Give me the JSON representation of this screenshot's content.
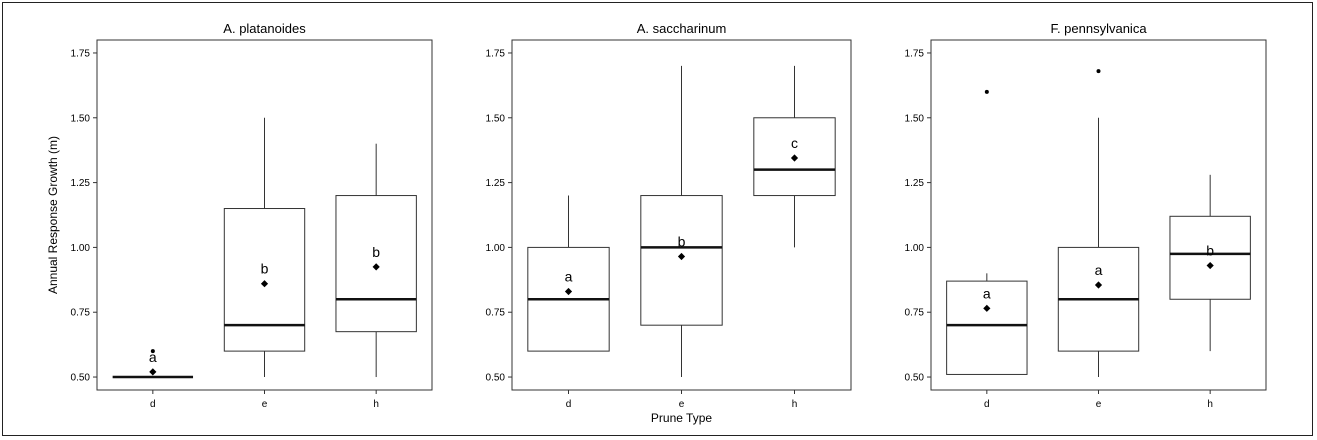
{
  "chart_data": [
    {
      "type": "boxplot",
      "title": "A. platanoides",
      "categories": [
        "d",
        "e",
        "h"
      ],
      "ylim": [
        0.45,
        1.8
      ],
      "yticks": [
        "0.50",
        "0.75",
        "1.00",
        "1.25",
        "1.50",
        "1.75"
      ],
      "ylabel": "Annual Response Growth (m)",
      "boxes": [
        {
          "category": "d",
          "q1": 0.5,
          "median": 0.5,
          "q3": 0.5,
          "whisker_low": 0.5,
          "whisker_high": 0.5,
          "mean": 0.52,
          "outliers": [
            0.6
          ],
          "letter": "a"
        },
        {
          "category": "e",
          "q1": 0.6,
          "median": 0.7,
          "q3": 1.15,
          "whisker_low": 0.5,
          "whisker_high": 1.5,
          "mean": 0.86,
          "outliers": [],
          "letter": "b"
        },
        {
          "category": "h",
          "q1": 0.675,
          "median": 0.8,
          "q3": 1.2,
          "whisker_low": 0.5,
          "whisker_high": 1.4,
          "mean": 0.925,
          "outliers": [],
          "letter": "b"
        }
      ]
    },
    {
      "type": "boxplot",
      "title": "A. saccharinum",
      "categories": [
        "d",
        "e",
        "h"
      ],
      "ylim": [
        0.45,
        1.8
      ],
      "yticks": [
        "0.50",
        "0.75",
        "1.00",
        "1.25",
        "1.50",
        "1.75"
      ],
      "xlabel": "Prune Type",
      "boxes": [
        {
          "category": "d",
          "q1": 0.6,
          "median": 0.8,
          "q3": 1.0,
          "whisker_low": 0.6,
          "whisker_high": 1.2,
          "mean": 0.83,
          "outliers": [],
          "letter": "a"
        },
        {
          "category": "e",
          "q1": 0.7,
          "median": 1.0,
          "q3": 1.2,
          "whisker_low": 0.5,
          "whisker_high": 1.7,
          "mean": 0.965,
          "outliers": [],
          "letter": "b"
        },
        {
          "category": "h",
          "q1": 1.2,
          "median": 1.3,
          "q3": 1.5,
          "whisker_low": 1.0,
          "whisker_high": 1.7,
          "mean": 1.345,
          "outliers": [],
          "letter": "c"
        }
      ]
    },
    {
      "type": "boxplot",
      "title": "F. pennsylvanica",
      "categories": [
        "d",
        "e",
        "h"
      ],
      "ylim": [
        0.45,
        1.8
      ],
      "yticks": [
        "0.50",
        "0.75",
        "1.00",
        "1.25",
        "1.50",
        "1.75"
      ],
      "boxes": [
        {
          "category": "d",
          "q1": 0.51,
          "median": 0.7,
          "q3": 0.87,
          "whisker_low": 0.51,
          "whisker_high": 0.9,
          "mean": 0.765,
          "outliers": [
            1.6
          ],
          "letter": "a"
        },
        {
          "category": "e",
          "q1": 0.6,
          "median": 0.8,
          "q3": 1.0,
          "whisker_low": 0.5,
          "whisker_high": 1.5,
          "mean": 0.855,
          "outliers": [
            1.68
          ],
          "letter": "a"
        },
        {
          "category": "h",
          "q1": 0.8,
          "median": 0.975,
          "q3": 1.12,
          "whisker_low": 0.6,
          "whisker_high": 1.28,
          "mean": 0.93,
          "outliers": [],
          "letter": "b"
        }
      ]
    }
  ]
}
